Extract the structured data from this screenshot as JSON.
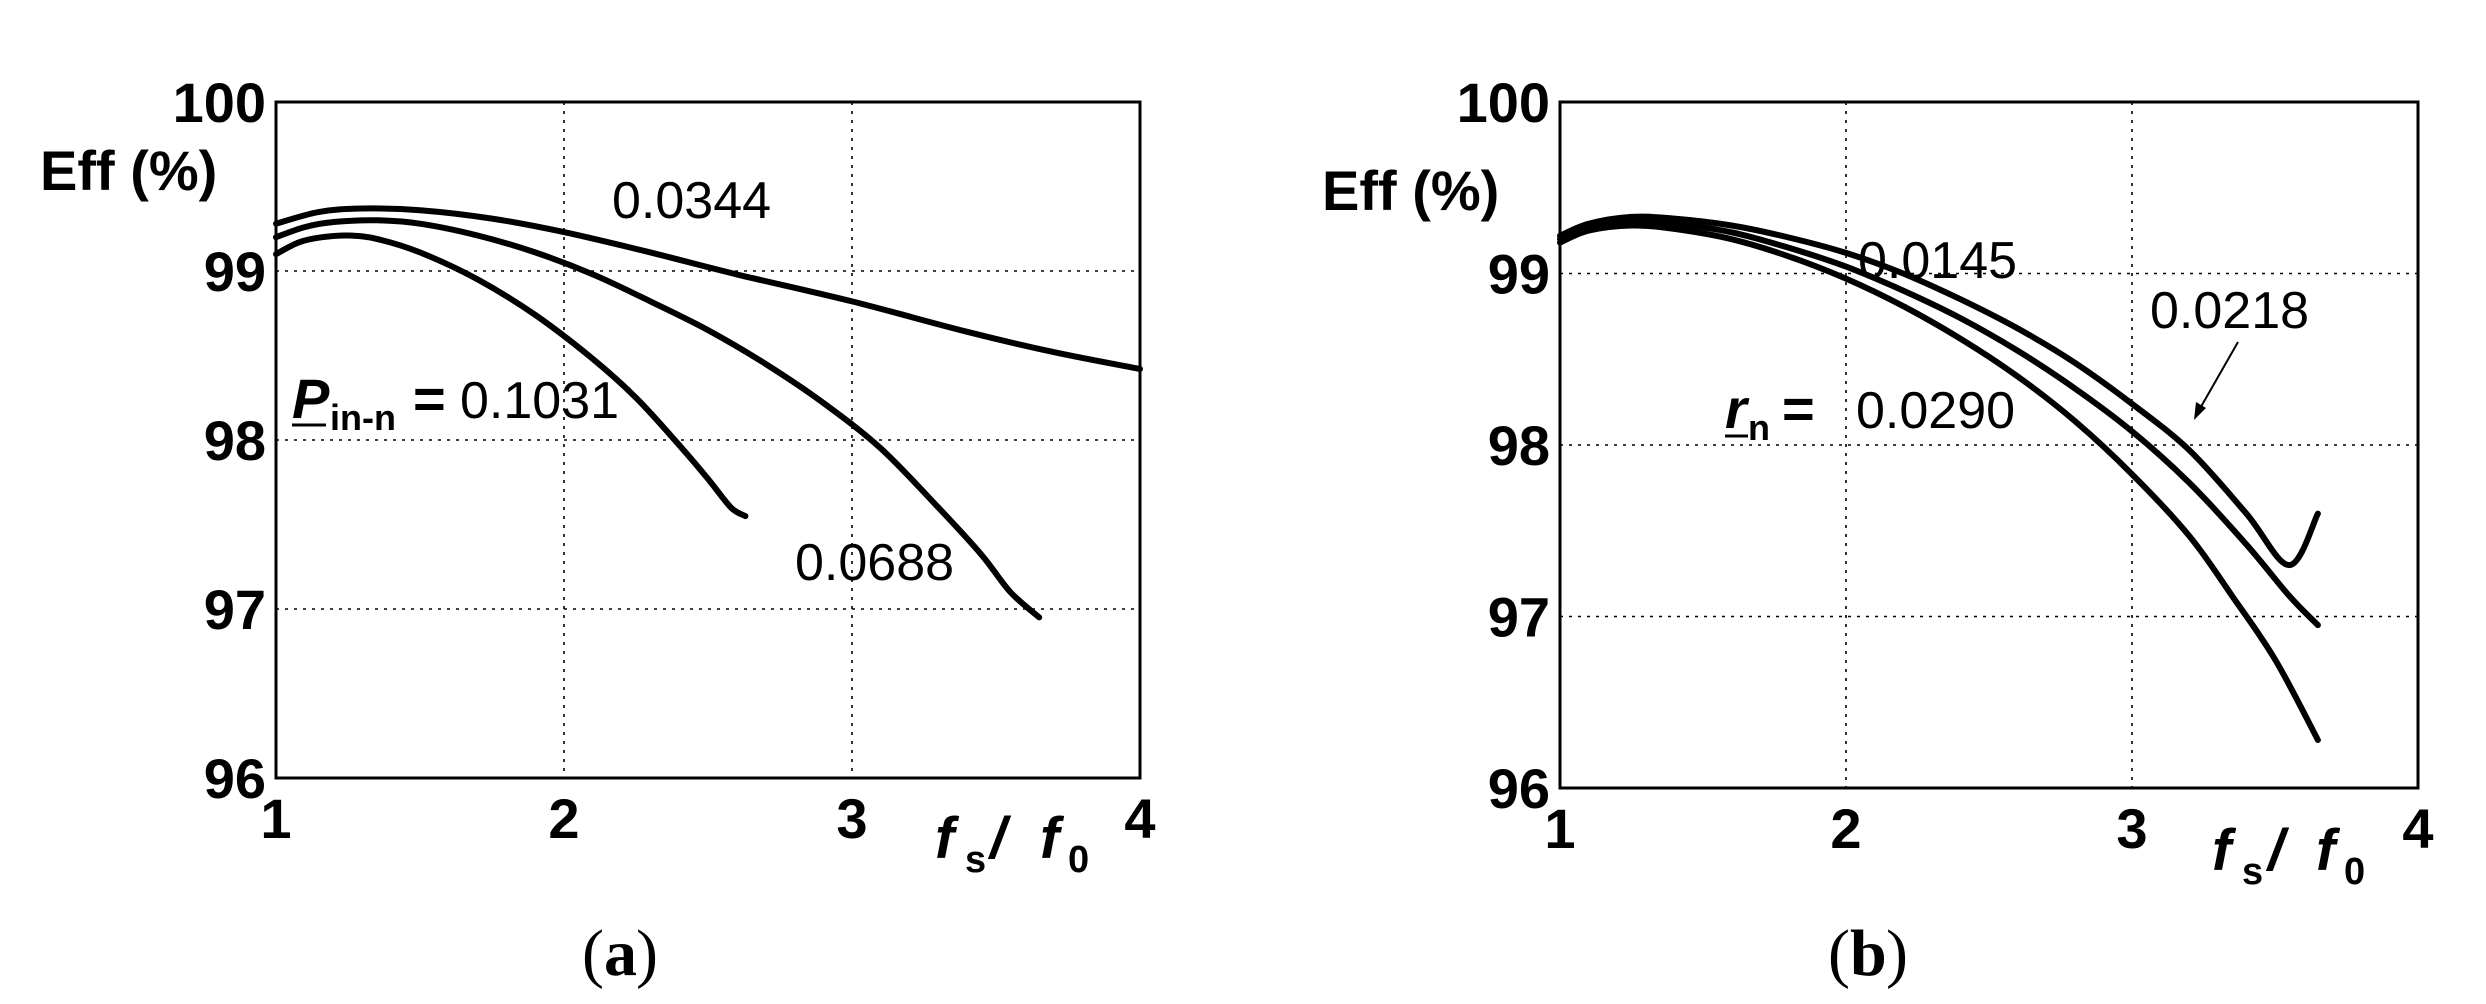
{
  "chart_data": [
    {
      "type": "line",
      "panel": "a",
      "caption": "a",
      "ylabel": "Eff (%)",
      "xlabel_main": "f",
      "xlabel_sub1": "s",
      "xlabel_mid": " / ",
      "xlabel_main2": "f",
      "xlabel_sub2": "0",
      "xlim": [
        1,
        4
      ],
      "ylim": [
        96,
        100
      ],
      "xticks": [
        "1",
        "2",
        "3",
        "4"
      ],
      "yticks": [
        "96",
        "97",
        "98",
        "99",
        "100"
      ],
      "grid": true,
      "param_symbol": "P",
      "param_sub": "in-n",
      "param_eq": "=",
      "series": [
        {
          "name": "0.0344",
          "x": [
            1.0,
            1.15,
            1.3,
            1.5,
            1.75,
            2.0,
            2.3,
            2.6,
            3.0,
            3.4,
            3.7,
            4.0
          ],
          "y": [
            99.28,
            99.35,
            99.37,
            99.36,
            99.31,
            99.23,
            99.11,
            98.98,
            98.82,
            98.64,
            98.52,
            98.42
          ]
        },
        {
          "name": "0.0688",
          "x": [
            1.0,
            1.1,
            1.2,
            1.35,
            1.5,
            1.7,
            1.9,
            2.1,
            2.3,
            2.5,
            2.7,
            2.9,
            3.1,
            3.3,
            3.45,
            3.55,
            3.65
          ],
          "y": [
            99.2,
            99.26,
            99.29,
            99.3,
            99.28,
            99.21,
            99.11,
            98.98,
            98.82,
            98.65,
            98.45,
            98.22,
            97.95,
            97.6,
            97.32,
            97.1,
            96.95
          ]
        },
        {
          "name": "0.1031",
          "x": [
            1.0,
            1.08,
            1.16,
            1.25,
            1.35,
            1.5,
            1.7,
            1.9,
            2.1,
            2.25,
            2.4,
            2.5,
            2.58,
            2.63
          ],
          "y": [
            99.1,
            99.17,
            99.2,
            99.21,
            99.19,
            99.11,
            98.95,
            98.74,
            98.48,
            98.25,
            97.97,
            97.77,
            97.6,
            97.55
          ]
        }
      ],
      "labels": {
        "s1": "0.0344",
        "s2": "0.0688",
        "s3": "0.1031"
      }
    },
    {
      "type": "line",
      "panel": "b",
      "caption": "b",
      "ylabel": "Eff (%)",
      "xlabel_main": "f",
      "xlabel_sub1": "s",
      "xlabel_mid": " / ",
      "xlabel_main2": "f",
      "xlabel_sub2": "0",
      "xlim": [
        1,
        4
      ],
      "ylim": [
        96,
        100
      ],
      "xticks": [
        "1",
        "2",
        "3",
        "4"
      ],
      "yticks": [
        "96",
        "97",
        "98",
        "99",
        "100"
      ],
      "grid": true,
      "param_symbol": "r",
      "param_sub": "n",
      "param_eq": "=",
      "series": [
        {
          "name": "0.0145",
          "x": [
            1.0,
            1.1,
            1.25,
            1.4,
            1.6,
            1.8,
            2.0,
            2.2,
            2.4,
            2.6,
            2.8,
            3.0,
            3.2,
            3.4,
            3.55,
            3.65
          ],
          "y": [
            99.22,
            99.29,
            99.33,
            99.32,
            99.28,
            99.21,
            99.12,
            99.0,
            98.85,
            98.68,
            98.48,
            98.24,
            97.97,
            97.6,
            97.3,
            97.6
          ]
        },
        {
          "name": "0.0218",
          "x": [
            1.0,
            1.1,
            1.25,
            1.4,
            1.6,
            1.8,
            2.0,
            2.2,
            2.4,
            2.6,
            2.8,
            3.0,
            3.2,
            3.4,
            3.55,
            3.65
          ],
          "y": [
            99.2,
            99.27,
            99.3,
            99.29,
            99.24,
            99.15,
            99.04,
            98.9,
            98.74,
            98.55,
            98.33,
            98.08,
            97.78,
            97.42,
            97.12,
            96.95
          ]
        },
        {
          "name": "0.0290",
          "x": [
            1.0,
            1.1,
            1.25,
            1.4,
            1.6,
            1.8,
            2.0,
            2.2,
            2.4,
            2.6,
            2.8,
            3.0,
            3.2,
            3.35,
            3.5,
            3.65
          ],
          "y": [
            99.18,
            99.25,
            99.28,
            99.26,
            99.2,
            99.1,
            98.97,
            98.81,
            98.62,
            98.4,
            98.14,
            97.83,
            97.47,
            97.12,
            96.75,
            96.28
          ]
        }
      ],
      "labels": {
        "s1": "0.0145",
        "s2": "0.0218",
        "s3": "0.0290"
      }
    }
  ]
}
